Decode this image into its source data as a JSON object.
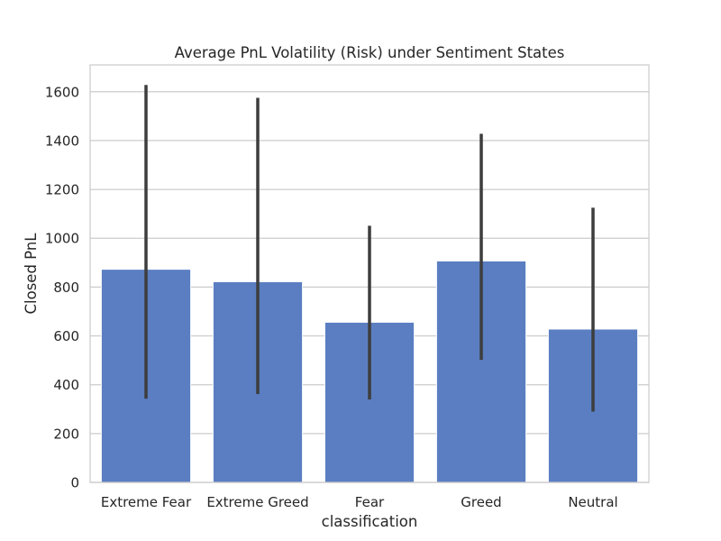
{
  "chart_data": {
    "type": "bar",
    "title": "Average PnL Volatility (Risk) under Sentiment States",
    "xlabel": "classification",
    "ylabel": "Closed PnL",
    "categories": [
      "Extreme Fear",
      "Extreme Greed",
      "Fear",
      "Greed",
      "Neutral"
    ],
    "values": [
      873,
      822,
      656,
      907,
      628
    ],
    "error_low": [
      343,
      362,
      340,
      502,
      290
    ],
    "error_high": [
      1628,
      1575,
      1051,
      1428,
      1125
    ],
    "ylim": [
      0,
      1710
    ],
    "yticks": [
      0,
      200,
      400,
      600,
      800,
      1000,
      1200,
      1400,
      1600
    ],
    "grid": true,
    "bar_color": "#5a7ec1",
    "error_color": "#3d3d3d"
  }
}
